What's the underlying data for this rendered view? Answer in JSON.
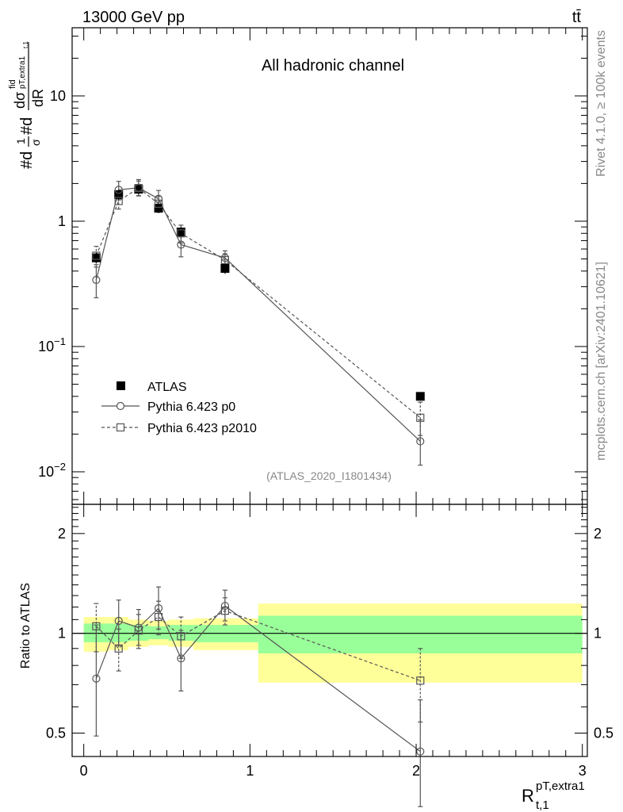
{
  "header": {
    "energy_label": "13000 GeV pp",
    "process_label": "tt̄"
  },
  "side": {
    "rivet_label": "Rivet 4.1.0, ≥ 100k events",
    "mcplots_label": "mcplots.cern.ch [arXiv:2401.10621]"
  },
  "chart_data": [
    {
      "type": "scatter",
      "panel": "main",
      "title": "All hadronic channel",
      "analysis_label": "(ATLAS_2020_I1801434)",
      "yscale": "log",
      "xlim": [
        -0.07,
        3.03
      ],
      "ylim": [
        0.0055,
        35
      ],
      "ylabel_parts": {
        "main": "#d",
        "frac1_num": "1",
        "frac1_den": "σ",
        "mid": "#d",
        "frac2_num": "dσ",
        "sup": "fid",
        "sub": "pT,extra1",
        "sub2": "t,1",
        "frac2_den": "dR"
      },
      "yticks": [
        {
          "value": 0.01,
          "base": "10",
          "exp": "−2"
        },
        {
          "value": 0.1,
          "base": "10",
          "exp": "−1"
        },
        {
          "value": 1,
          "base": "1",
          "exp": ""
        },
        {
          "value": 10,
          "base": "10",
          "exp": ""
        }
      ],
      "series": [
        {
          "name": "ATLAS",
          "style": "data",
          "x": [
            0.075,
            0.21,
            0.33,
            0.45,
            0.585,
            0.85,
            2.025
          ],
          "y": [
            0.51,
            1.63,
            1.8,
            1.27,
            0.82,
            0.42,
            0.04
          ],
          "yerr": [
            0.05,
            0.15,
            0.15,
            0.11,
            0.08,
            0.04,
            0.003
          ]
        },
        {
          "name": "Pythia 6.423 p0",
          "style": "solid-circle",
          "x": [
            0.075,
            0.21,
            0.33,
            0.45,
            0.585,
            0.85,
            2.025
          ],
          "y": [
            0.34,
            1.78,
            1.85,
            1.51,
            0.65,
            0.51,
            0.0175
          ],
          "yerr_low": [
            0.095,
            0.3,
            0.25,
            0.2,
            0.13,
            0.06,
            0.0062
          ],
          "yerr_high": [
            0.11,
            0.3,
            0.3,
            0.25,
            0.15,
            0.07,
            0.0085
          ]
        },
        {
          "name": "Pythia 6.423 p2010",
          "style": "dashed-square",
          "x": [
            0.075,
            0.21,
            0.33,
            0.45,
            0.585,
            0.85,
            2.025
          ],
          "y": [
            0.53,
            1.45,
            1.84,
            1.38,
            0.8,
            0.49,
            0.027
          ],
          "yerr_low": [
            0.1,
            0.2,
            0.25,
            0.2,
            0.13,
            0.06,
            0.0075
          ],
          "yerr_high": [
            0.1,
            0.2,
            0.25,
            0.2,
            0.13,
            0.06,
            0.009
          ]
        }
      ]
    },
    {
      "type": "scatter",
      "panel": "ratio",
      "ylabel": "Ratio to ATLAS",
      "xlabel_base": "R",
      "xlabel_sup": "pT,extra1",
      "xlabel_sub": "t,1",
      "xlim": [
        -0.07,
        3.03
      ],
      "ylim": [
        0.425,
        2.45
      ],
      "yscale": "log",
      "yticks": [
        0.5,
        1,
        2
      ],
      "xticks": [
        0,
        1,
        2,
        3
      ],
      "bands": [
        {
          "x0": 0.0,
          "x1": 0.15,
          "inner": [
            0.94,
            1.07
          ],
          "outer": [
            0.88,
            1.12
          ]
        },
        {
          "x0": 0.15,
          "x1": 0.27,
          "inner": [
            0.94,
            1.07
          ],
          "outer": [
            0.89,
            1.12
          ]
        },
        {
          "x0": 0.27,
          "x1": 0.39,
          "inner": [
            0.95,
            1.06
          ],
          "outer": [
            0.91,
            1.1
          ]
        },
        {
          "x0": 0.39,
          "x1": 0.51,
          "inner": [
            0.96,
            1.05
          ],
          "outer": [
            0.92,
            1.09
          ]
        },
        {
          "x0": 0.51,
          "x1": 0.66,
          "inner": [
            0.95,
            1.06
          ],
          "outer": [
            0.91,
            1.1
          ]
        },
        {
          "x0": 0.66,
          "x1": 1.05,
          "inner": [
            0.94,
            1.06
          ],
          "outer": [
            0.89,
            1.11
          ]
        },
        {
          "x0": 1.05,
          "x1": 3.0,
          "inner": [
            0.87,
            1.13
          ],
          "outer": [
            0.71,
            1.23
          ]
        }
      ],
      "series": [
        {
          "name": "Pythia 6.423 p0",
          "style": "solid-circle",
          "x": [
            0.075,
            0.21,
            0.33,
            0.45,
            0.585,
            0.85,
            2.025
          ],
          "y": [
            0.73,
            1.09,
            1.04,
            1.19,
            0.84,
            1.21,
            0.44
          ],
          "yerr_low": [
            0.24,
            0.17,
            0.12,
            0.16,
            0.17,
            0.12,
            0.14
          ],
          "yerr_high": [
            0.33,
            0.17,
            0.14,
            0.19,
            0.18,
            0.14,
            0.19
          ]
        },
        {
          "name": "Pythia 6.423 p2010",
          "style": "dashed-square",
          "x": [
            0.075,
            0.21,
            0.33,
            0.45,
            0.585,
            0.85,
            2.025
          ],
          "y": [
            1.05,
            0.9,
            1.02,
            1.12,
            0.98,
            1.17,
            0.72
          ],
          "yerr_low": [
            0.17,
            0.13,
            0.12,
            0.13,
            0.14,
            0.11,
            0.18
          ],
          "yerr_high": [
            0.18,
            0.13,
            0.12,
            0.13,
            0.14,
            0.11,
            0.18
          ]
        }
      ]
    }
  ],
  "colors": {
    "inner_band": "#99ff99",
    "outer_band": "#ffff99",
    "mc_line": "#555555",
    "data": "#000000",
    "grey_text": "#888888"
  }
}
